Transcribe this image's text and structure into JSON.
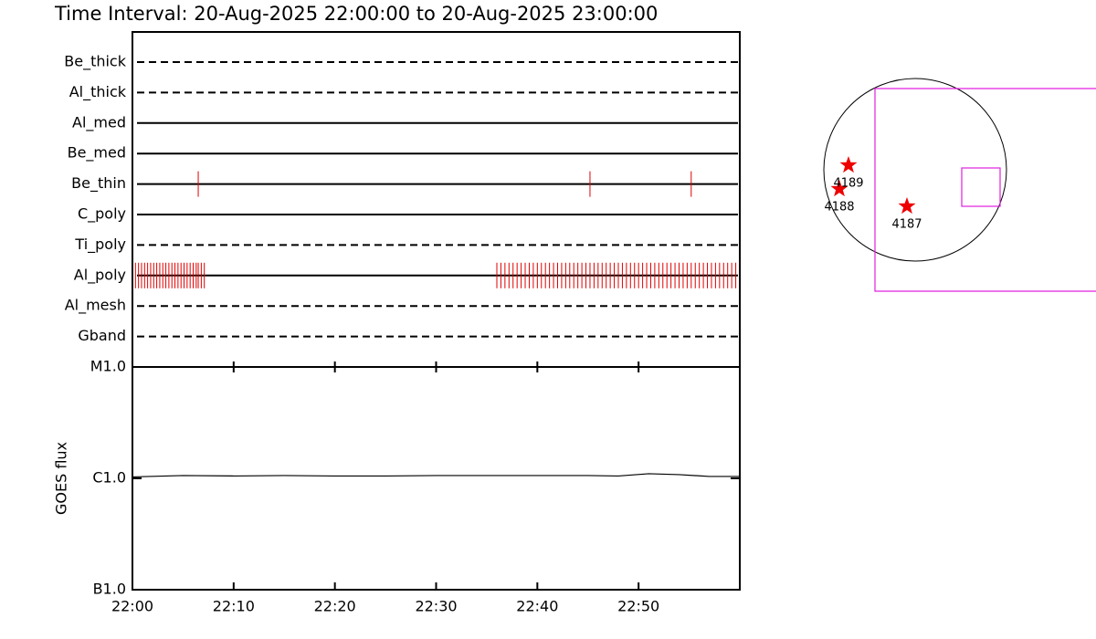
{
  "chart_data": [
    {
      "type": "timeline",
      "title": "Time Interval: 20-Aug-2025 22:00:00 to 20-Aug-2025 23:00:00",
      "categories": [
        "Be_thick",
        "Al_thick",
        "Al_med",
        "Be_med",
        "Be_thin",
        "C_poly",
        "Ti_poly",
        "Al_poly",
        "Al_mesh",
        "Gband"
      ],
      "line_styles": [
        "dashed",
        "dashed",
        "solid",
        "solid",
        "solid",
        "solid",
        "dashed",
        "solid",
        "dashed",
        "dashed"
      ],
      "events": [
        [],
        [],
        [],
        [],
        [
          6.5,
          45.2,
          55.2
        ],
        [],
        [],
        [
          0.3,
          0.6,
          0.9,
          1.2,
          1.5,
          1.8,
          2.1,
          2.4,
          2.7,
          3.0,
          3.3,
          3.6,
          3.9,
          4.2,
          4.5,
          4.8,
          5.1,
          5.4,
          5.7,
          6.0,
          6.3,
          6.5,
          6.8,
          7.1,
          36.0,
          36.4,
          36.8,
          37.2,
          37.6,
          38.0,
          38.4,
          38.8,
          39.2,
          39.6,
          40.0,
          40.4,
          40.8,
          41.2,
          41.6,
          42.0,
          42.4,
          42.8,
          43.2,
          43.6,
          44.0,
          44.4,
          44.8,
          45.2,
          45.6,
          46.0,
          46.4,
          46.8,
          47.2,
          47.6,
          48.0,
          48.4,
          48.8,
          49.2,
          49.6,
          50.0,
          50.4,
          50.8,
          51.2,
          51.6,
          52.0,
          52.4,
          52.8,
          53.2,
          53.6,
          54.0,
          54.4,
          54.8,
          55.2,
          55.6,
          56.0,
          56.4,
          56.8,
          57.2,
          57.6,
          58.0,
          58.4,
          58.8,
          59.2,
          59.6
        ],
        [],
        []
      ],
      "event_color": "#e00000",
      "xlim": [
        0,
        60
      ]
    },
    {
      "type": "line",
      "ylabel": "GOES flux",
      "log_scale": true,
      "x": [
        0,
        5,
        10,
        15,
        20,
        25,
        30,
        35,
        40,
        45,
        48,
        51,
        54,
        57,
        60
      ],
      "values": [
        1.03e-06,
        1.06e-06,
        1.05e-06,
        1.06e-06,
        1.05e-06,
        1.05e-06,
        1.06e-06,
        1.06e-06,
        1.06e-06,
        1.06e-06,
        1.05e-06,
        1.1e-06,
        1.08e-06,
        1.04e-06,
        1.04e-06
      ],
      "color": "#000000",
      "xlim": [
        0,
        60
      ],
      "xticks": [
        {
          "value": 0,
          "label": "22:00"
        },
        {
          "value": 10,
          "label": "22:10"
        },
        {
          "value": 20,
          "label": "22:20"
        },
        {
          "value": 30,
          "label": "22:30"
        },
        {
          "value": 40,
          "label": "22:40"
        },
        {
          "value": 50,
          "label": "22:50"
        }
      ],
      "ylim": [
        1e-07,
        1e-05
      ],
      "yticks": [
        {
          "value": 1e-07,
          "label": "B1.0"
        },
        {
          "value": 1e-06,
          "label": "C1.0"
        },
        {
          "value": 1e-05,
          "label": "M1.0"
        }
      ]
    }
  ],
  "map": {
    "regions": [
      "4189",
      "4188",
      "4187"
    ]
  }
}
